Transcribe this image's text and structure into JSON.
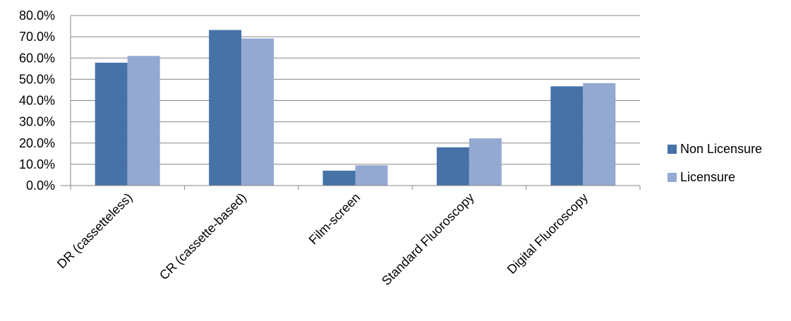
{
  "chart_data": {
    "type": "bar",
    "categories": [
      "DR (cassetteless)",
      "CR (cassette-based)",
      "Film-screen",
      "Standard Fluoroscopy",
      "Digital Fluoroscopy"
    ],
    "series": [
      {
        "name": "Non Licensure",
        "color": "#4672A8",
        "values": [
          57.8,
          73.2,
          7.0,
          18.0,
          46.7
        ]
      },
      {
        "name": "Licensure",
        "color": "#94A9D1",
        "values": [
          61.0,
          69.2,
          9.5,
          22.2,
          48.2
        ]
      }
    ],
    "ylim": [
      0,
      80
    ],
    "yticks": [
      "0.0%",
      "10.0%",
      "20.0%",
      "30.0%",
      "40.0%",
      "50.0%",
      "60.0%",
      "70.0%",
      "80.0%"
    ],
    "grid": true,
    "legend_position": "right"
  }
}
